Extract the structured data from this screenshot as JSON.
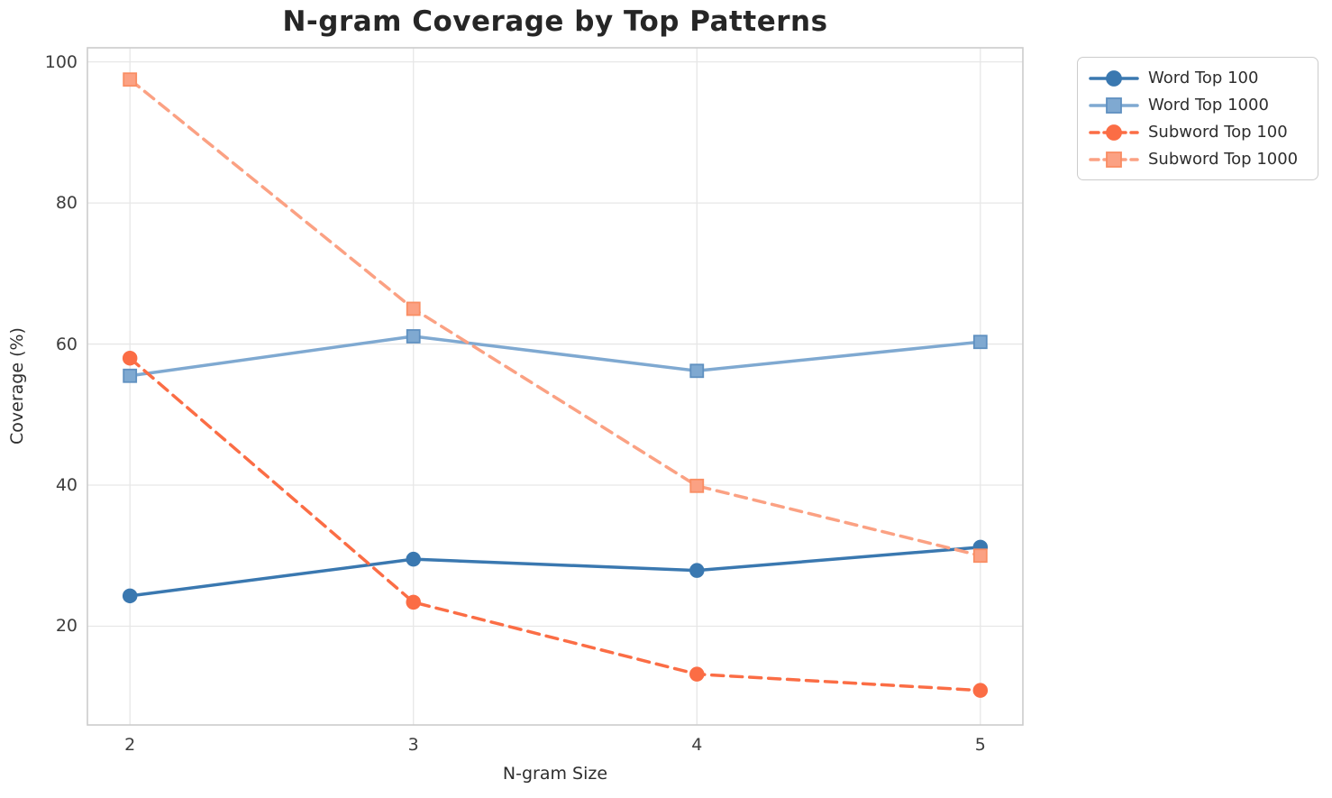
{
  "chart_data": {
    "type": "line",
    "title": "N-gram Coverage by Top Patterns",
    "xlabel": "N-gram Size",
    "ylabel": "Coverage (%)",
    "x": [
      2,
      3,
      4,
      5
    ],
    "xticks": [
      2,
      3,
      4,
      5
    ],
    "yticks": [
      20,
      40,
      60,
      80,
      100
    ],
    "xlim": [
      1.85,
      5.15
    ],
    "ylim": [
      6,
      102
    ],
    "grid": true,
    "legend_position": "outside-upper-right",
    "series": [
      {
        "name": "Word Top 100",
        "values": [
          24.3,
          29.5,
          27.9,
          31.2
        ],
        "color": "#3a78b0",
        "marker_edge": "#3a78b0",
        "marker": "circle",
        "line_style": "solid"
      },
      {
        "name": "Word Top 1000",
        "values": [
          55.5,
          61.1,
          56.2,
          60.3
        ],
        "color": "#7fa9d1",
        "marker_edge": "#5f90c0",
        "marker": "square",
        "line_style": "solid"
      },
      {
        "name": "Subword Top 100",
        "values": [
          58.0,
          23.4,
          13.2,
          10.9
        ],
        "color": "#fb6d45",
        "marker_edge": "#fb6d45",
        "marker": "circle",
        "line_style": "dashed"
      },
      {
        "name": "Subword Top 1000",
        "values": [
          97.5,
          65.0,
          39.9,
          30.0
        ],
        "color": "#fba183",
        "marker_edge": "#f98d63",
        "marker": "square",
        "line_style": "dashed"
      }
    ]
  },
  "styles": {
    "grid_color": "#e7e7e7",
    "spine_color": "#cccccc",
    "title_color": "#262626",
    "tick_color": "#3d3d3d",
    "label_color": "#2e2e2e",
    "background": "#ffffff"
  }
}
